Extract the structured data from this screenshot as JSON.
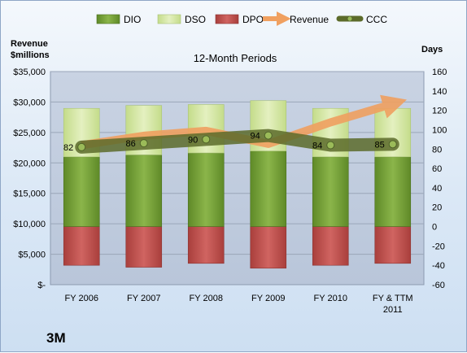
{
  "company": "3M",
  "chart_data": {
    "type": "bar",
    "title": "12-Month Periods",
    "ylabel_left": "Revenue $millions",
    "ylabel_right": "Days",
    "categories": [
      "FY 2006",
      "FY 2007",
      "FY 2008",
      "FY 2009",
      "FY 2010",
      "FY & TTM 2011"
    ],
    "left_axis": {
      "ylim": [
        0,
        35000
      ],
      "ticks": [
        "$-",
        "$5,000",
        "$10,000",
        "$15,000",
        "$20,000",
        "$25,000",
        "$30,000",
        "$35,000"
      ]
    },
    "right_axis": {
      "ylim": [
        -60,
        160
      ],
      "ticks": [
        "-60",
        "-40",
        "-20",
        "0",
        "20",
        "40",
        "60",
        "80",
        "100",
        "120",
        "140",
        "160"
      ]
    },
    "series": [
      {
        "name": "DIO",
        "type": "stacked-bar",
        "axis": "right",
        "color": "#77a03a",
        "values": [
          72,
          74,
          76,
          78,
          72,
          72
        ]
      },
      {
        "name": "DSO",
        "type": "stacked-bar",
        "axis": "right",
        "color": "#d3e6a4",
        "values": [
          50,
          51,
          50,
          52,
          50,
          50
        ]
      },
      {
        "name": "DPO",
        "type": "negative-bar",
        "axis": "right",
        "color": "#c0504d",
        "values": [
          -40,
          -42,
          -38,
          -43,
          -40,
          -38
        ]
      },
      {
        "name": "Revenue",
        "type": "arrow-line",
        "axis": "left",
        "color": "#f0a060",
        "values": [
          22923,
          24462,
          25269,
          23123,
          26662,
          29700
        ]
      },
      {
        "name": "CCC",
        "type": "line",
        "axis": "right",
        "color": "#5c6b2a",
        "values": [
          82,
          86,
          90,
          94,
          84,
          85
        ],
        "labels": [
          "82",
          "86",
          "90",
          "94",
          "84",
          "85"
        ]
      }
    ],
    "legend": {
      "position": "top",
      "entries": [
        "DIO",
        "DSO",
        "DPO",
        "Revenue",
        "CCC"
      ]
    },
    "grid": true
  }
}
